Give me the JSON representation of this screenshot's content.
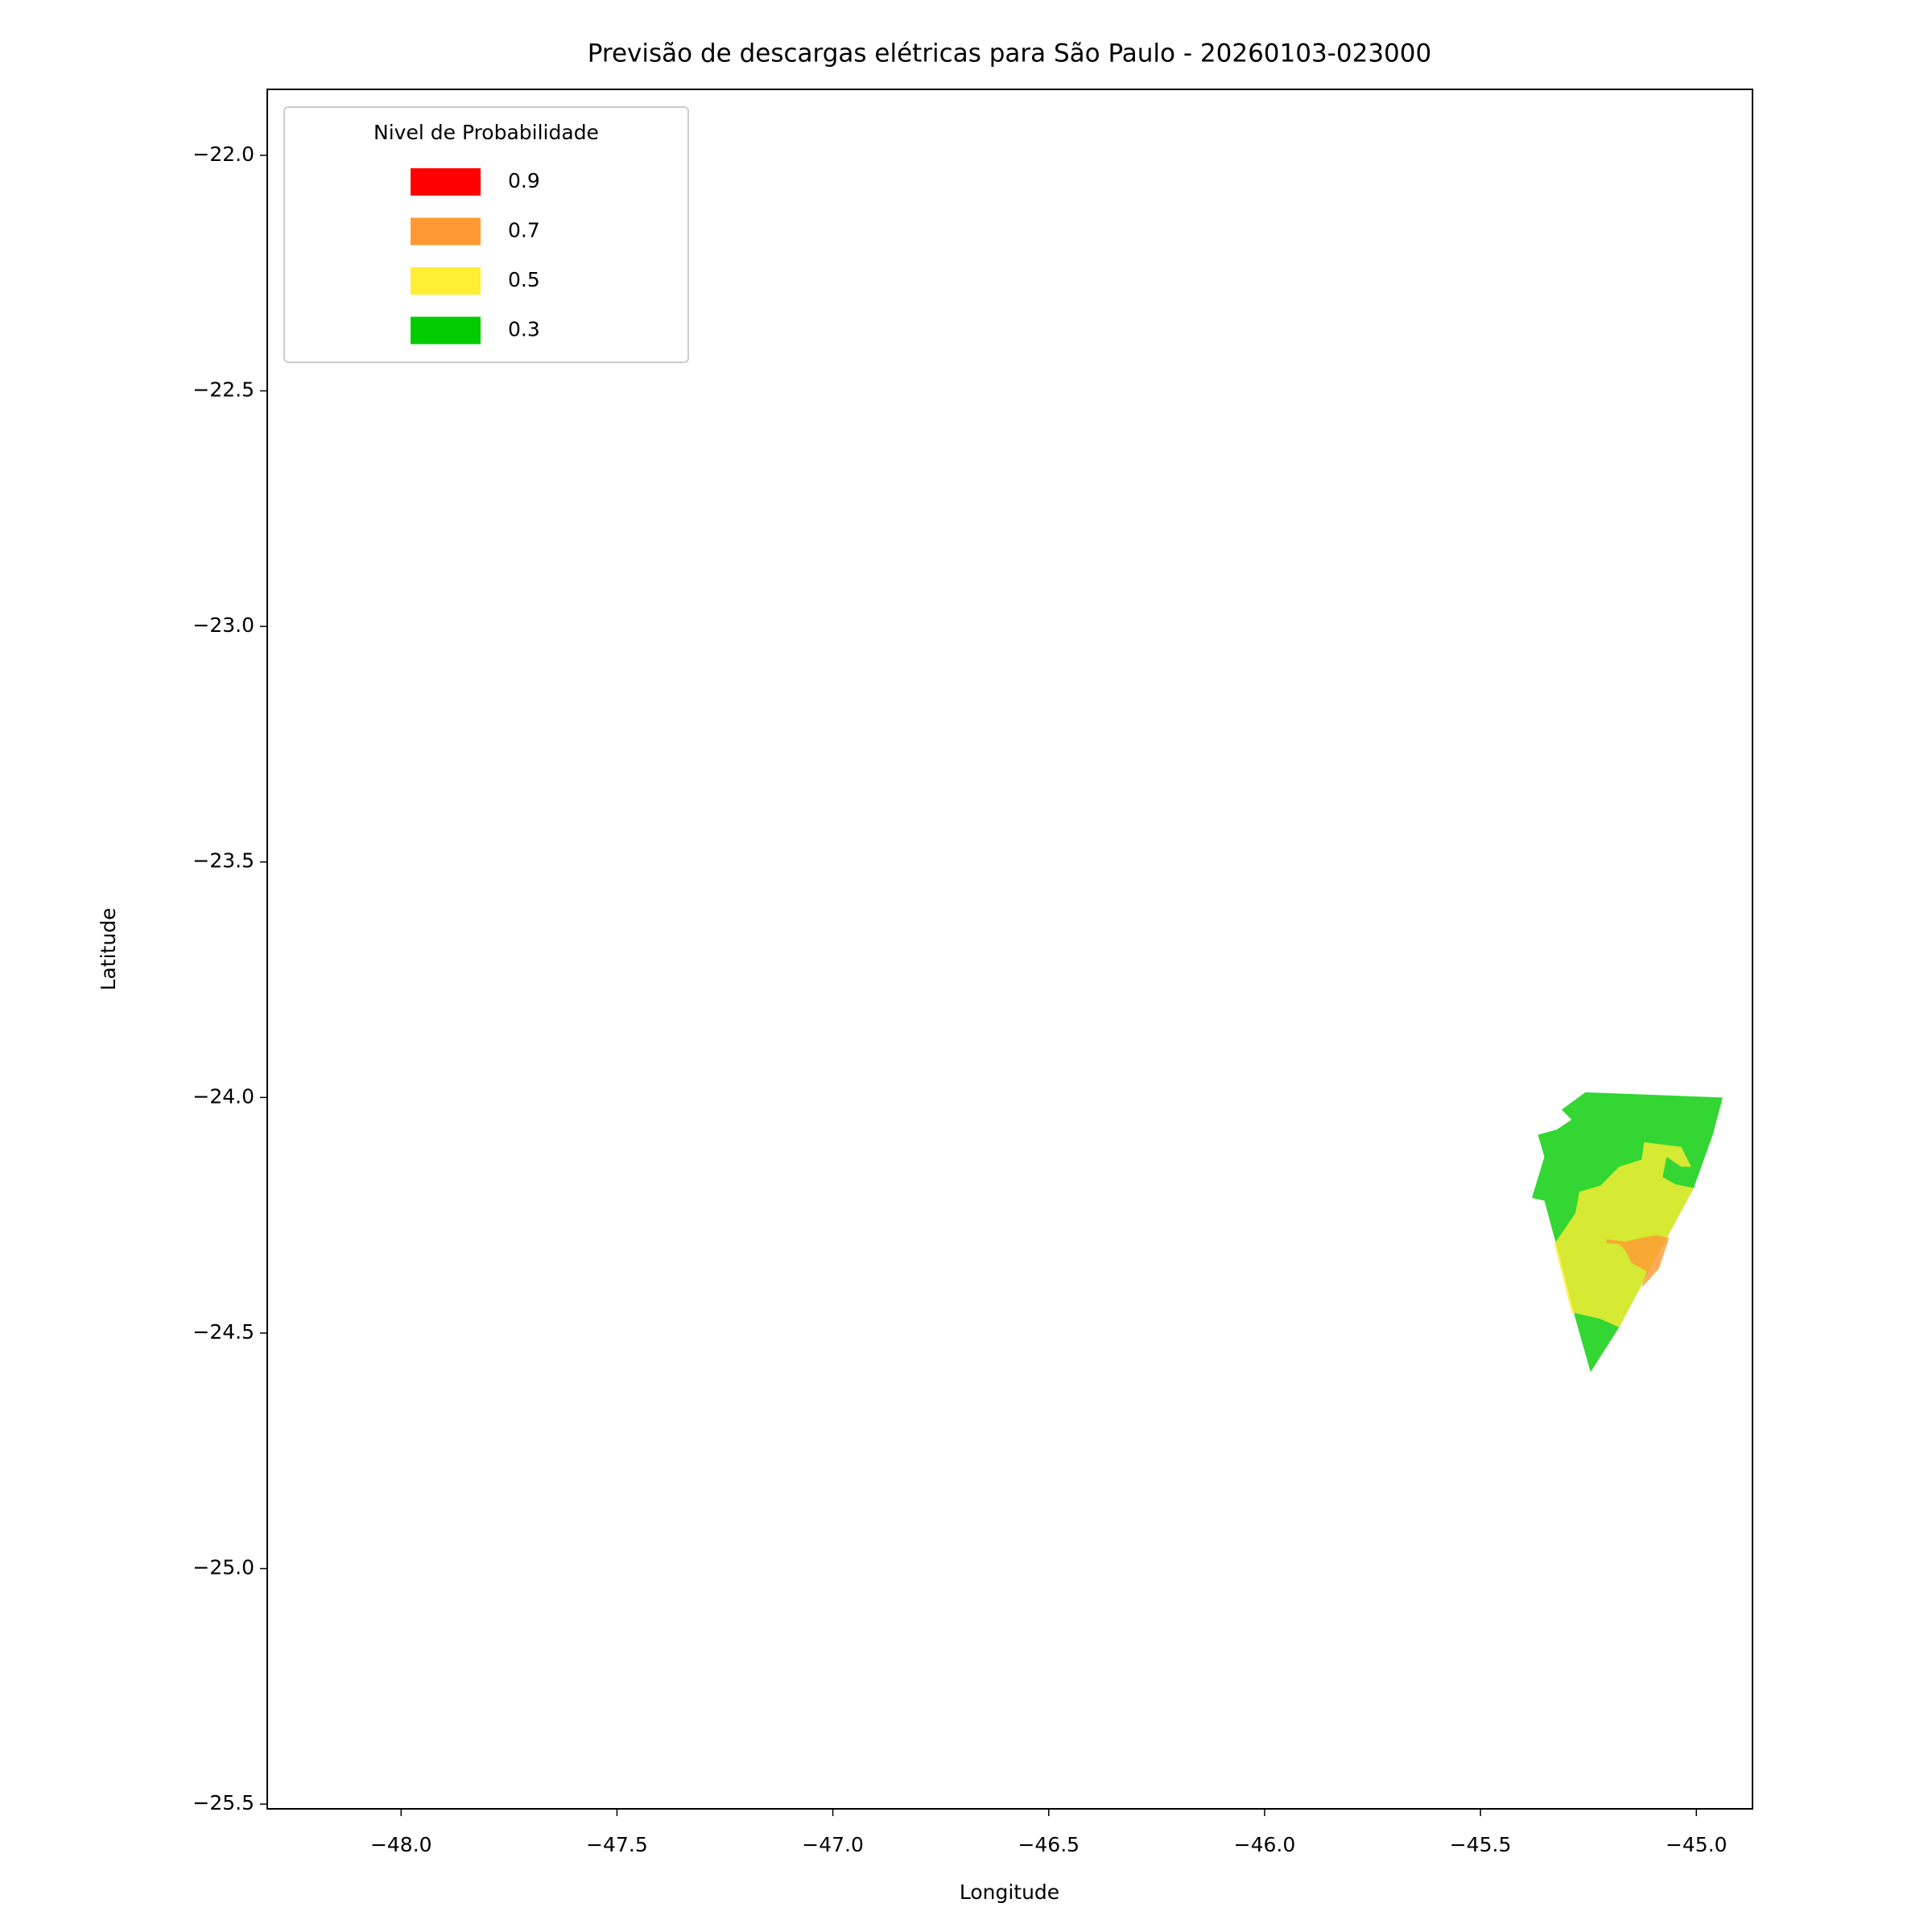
{
  "chart_data": {
    "type": "contour-map",
    "title": "Previsão de descargas elétricas para São Paulo - 20260103-023000",
    "x_label": "Longitude",
    "y_label": "Latitude",
    "xlim": [
      -48.31,
      -44.87
    ],
    "ylim": [
      -25.51,
      -21.86
    ],
    "xticks": [
      {
        "value": -48.0,
        "label": "−48.0"
      },
      {
        "value": -47.5,
        "label": "−47.5"
      },
      {
        "value": -47.0,
        "label": "−47.0"
      },
      {
        "value": -46.5,
        "label": "−46.5"
      },
      {
        "value": -46.0,
        "label": "−46.0"
      },
      {
        "value": -45.5,
        "label": "−45.5"
      },
      {
        "value": -45.0,
        "label": "−45.0"
      }
    ],
    "yticks": [
      {
        "value": -22.0,
        "label": "−22.0"
      },
      {
        "value": -22.5,
        "label": "−22.5"
      },
      {
        "value": -23.0,
        "label": "−23.0"
      },
      {
        "value": -23.5,
        "label": "−23.5"
      },
      {
        "value": -24.0,
        "label": "−24.0"
      },
      {
        "value": -24.5,
        "label": "−24.5"
      },
      {
        "value": -25.0,
        "label": "−25.0"
      },
      {
        "value": -25.5,
        "label": "−25.5"
      }
    ],
    "fill_opacity": 0.8,
    "legend_title": "Nivel de Probabilidade",
    "legend_position": "upper left",
    "series": [
      {
        "name": "0.9",
        "color": "#ff0000",
        "polygons": []
      },
      {
        "name": "0.7",
        "color": "#ff9933",
        "polygons": [
          [
            [
              -45.092,
              -24.293
            ],
            [
              -45.063,
              -24.298
            ],
            [
              -45.087,
              -24.364
            ],
            [
              -45.127,
              -24.404
            ],
            [
              -45.115,
              -24.369
            ],
            [
              -45.15,
              -24.351
            ],
            [
              -45.165,
              -24.324
            ],
            [
              -45.179,
              -24.311
            ],
            [
              -45.208,
              -24.309
            ],
            [
              -45.208,
              -24.301
            ],
            [
              -45.165,
              -24.306
            ],
            [
              -45.127,
              -24.298
            ]
          ]
        ]
      },
      {
        "name": "0.5",
        "color": "#ffee33",
        "polygons": [
          [
            [
              -45.121,
              -24.095
            ],
            [
              -45.035,
              -24.105
            ],
            [
              -45.012,
              -24.147
            ],
            [
              -45.035,
              -24.147
            ],
            [
              -45.069,
              -24.126
            ],
            [
              -45.078,
              -24.169
            ],
            [
              -45.049,
              -24.184
            ],
            [
              -45.006,
              -24.192
            ],
            [
              -45.092,
              -24.338
            ],
            [
              -45.179,
              -24.488
            ],
            [
              -45.222,
              -24.47
            ],
            [
              -45.289,
              -24.456
            ],
            [
              -45.329,
              -24.311
            ],
            [
              -45.28,
              -24.245
            ],
            [
              -45.271,
              -24.2
            ],
            [
              -45.222,
              -24.187
            ],
            [
              -45.179,
              -24.147
            ],
            [
              -45.127,
              -24.132
            ]
          ]
        ]
      },
      {
        "name": "0.3",
        "color": "#00cc00",
        "polygons": [
          [
            [
              -45.257,
              -23.989
            ],
            [
              -44.939,
              -24.0
            ],
            [
              -44.962,
              -24.079
            ],
            [
              -45.006,
              -24.192
            ],
            [
              -45.092,
              -24.338
            ],
            [
              -45.179,
              -24.488
            ],
            [
              -45.245,
              -24.583
            ],
            [
              -45.28,
              -24.47
            ],
            [
              -45.317,
              -24.338
            ],
            [
              -45.352,
              -24.219
            ],
            [
              -45.381,
              -24.213
            ],
            [
              -45.352,
              -24.126
            ],
            [
              -45.367,
              -24.079
            ],
            [
              -45.323,
              -24.068
            ],
            [
              -45.289,
              -24.047
            ],
            [
              -45.312,
              -24.026
            ]
          ]
        ]
      }
    ]
  }
}
